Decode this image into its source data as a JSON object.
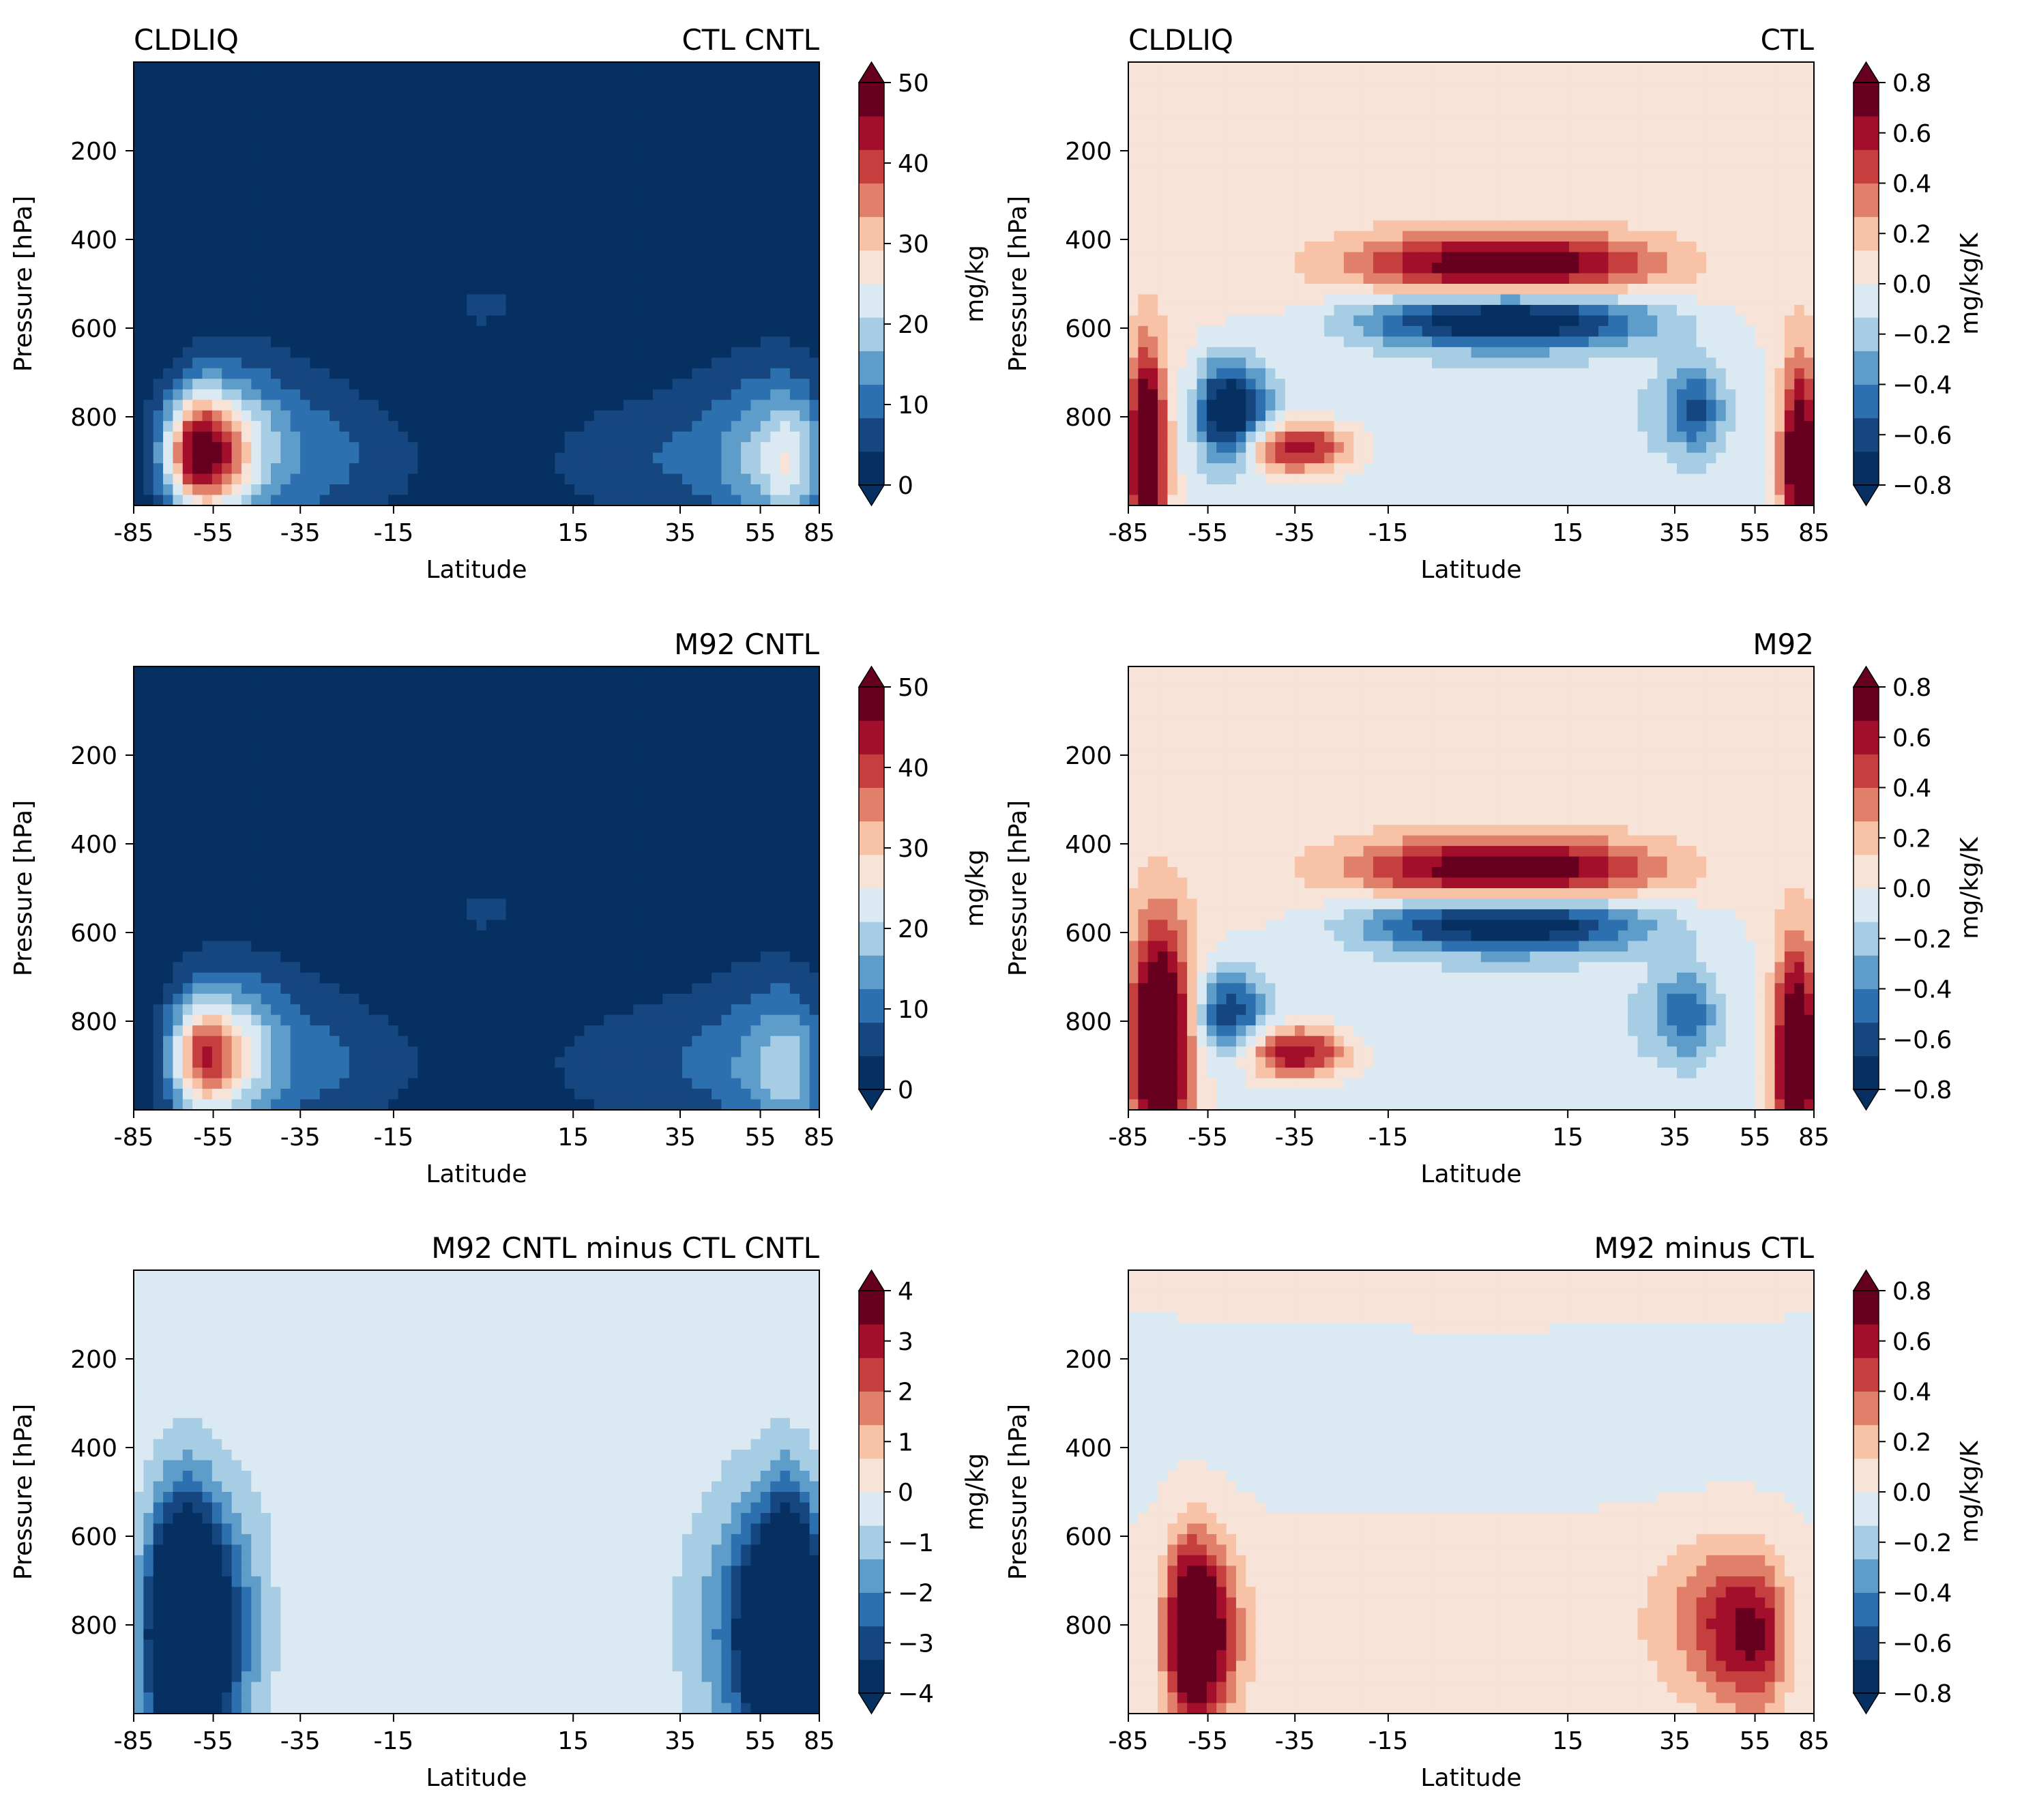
{
  "chart_data": [
    {
      "type": "heatmap",
      "title_left": "CLDLIQ",
      "title_right": "CTL CNTL",
      "xlabel": "Latitude",
      "ylabel": "Pressure [hPa]",
      "xticks": [
        "-85",
        "-55",
        "-35",
        "-15",
        "15",
        "35",
        "55",
        "85"
      ],
      "yticks": [
        "200",
        "400",
        "600",
        "800"
      ],
      "ylim": [
        1000,
        0
      ],
      "colorbar": {
        "label": "mg/kg",
        "levels": [
          0,
          50
        ],
        "ticks": [
          "0",
          "10",
          "20",
          "30",
          "40",
          "50"
        ]
      },
      "features": [
        {
          "lat": -60,
          "p": 880,
          "sx": 9,
          "sy": 90,
          "v": 42
        },
        {
          "lat": -50,
          "p": 870,
          "sx": 16,
          "sy": 160,
          "v": 14
        },
        {
          "lat": 68,
          "p": 900,
          "sx": 14,
          "sy": 110,
          "v": 18
        },
        {
          "lat": 60,
          "p": 860,
          "sx": 22,
          "sy": 180,
          "v": 8
        },
        {
          "lat": -22,
          "p": 900,
          "sx": 12,
          "sy": 110,
          "v": 5
        },
        {
          "lat": 25,
          "p": 900,
          "sx": 14,
          "sy": 100,
          "v": 5
        },
        {
          "lat": 0,
          "p": 550,
          "sx": 4,
          "sy": 40,
          "v": 6
        }
      ]
    },
    {
      "type": "heatmap",
      "title_left": "CLDLIQ",
      "title_right": "CTL",
      "xlabel": "Latitude",
      "ylabel": "Pressure [hPa]",
      "xticks": [
        "-85",
        "-55",
        "-35",
        "-15",
        "15",
        "35",
        "55",
        "85"
      ],
      "yticks": [
        "200",
        "400",
        "600",
        "800"
      ],
      "ylim": [
        1000,
        0
      ],
      "colorbar": {
        "label": "mg/kg/K",
        "levels": [
          -0.8,
          0.8
        ],
        "ticks": [
          "0.8",
          "0.6",
          "0.4",
          "0.2",
          "0.0",
          "−0.2",
          "−0.4",
          "−0.6",
          "−0.8"
        ]
      },
      "features": [
        {
          "lat": -78,
          "p": 880,
          "sx": 5,
          "sy": 160,
          "v": 1.1
        },
        {
          "lat": 78,
          "p": 900,
          "sx": 7,
          "sy": 160,
          "v": 1.0
        },
        {
          "lat": 5,
          "p": 460,
          "sx": 18,
          "sy": 50,
          "v": 0.8
        },
        {
          "lat": 5,
          "p": 580,
          "sx": 18,
          "sy": 45,
          "v": -0.9
        },
        {
          "lat": -50,
          "p": 790,
          "sx": 6,
          "sy": 80,
          "v": -0.9
        },
        {
          "lat": -35,
          "p": 870,
          "sx": 9,
          "sy": 40,
          "v": 0.7
        },
        {
          "lat": 40,
          "p": 780,
          "sx": 5,
          "sy": 70,
          "v": -0.5
        },
        {
          "lat": 5,
          "p": 750,
          "sx": 40,
          "sy": 200,
          "v": -0.15
        },
        {
          "lat": 0,
          "p": 500,
          "sx": 65,
          "sy": 160,
          "v": 0.12
        }
      ]
    },
    {
      "type": "heatmap",
      "title_left": "",
      "title_right": "M92 CNTL",
      "xlabel": "Latitude",
      "ylabel": "Pressure [hPa]",
      "xticks": [
        "-85",
        "-55",
        "-35",
        "-15",
        "15",
        "35",
        "55",
        "85"
      ],
      "yticks": [
        "200",
        "400",
        "600",
        "800"
      ],
      "ylim": [
        1000,
        0
      ],
      "colorbar": {
        "label": "mg/kg",
        "levels": [
          0,
          50
        ],
        "ticks": [
          "0",
          "10",
          "20",
          "30",
          "40",
          "50"
        ]
      },
      "features": [
        {
          "lat": -58,
          "p": 880,
          "sx": 9,
          "sy": 90,
          "v": 32
        },
        {
          "lat": -50,
          "p": 870,
          "sx": 16,
          "sy": 160,
          "v": 12
        },
        {
          "lat": 68,
          "p": 910,
          "sx": 14,
          "sy": 110,
          "v": 14
        },
        {
          "lat": 60,
          "p": 860,
          "sx": 22,
          "sy": 180,
          "v": 7
        },
        {
          "lat": -22,
          "p": 900,
          "sx": 12,
          "sy": 110,
          "v": 5
        },
        {
          "lat": 25,
          "p": 900,
          "sx": 14,
          "sy": 100,
          "v": 5
        },
        {
          "lat": 0,
          "p": 550,
          "sx": 4,
          "sy": 40,
          "v": 6
        }
      ]
    },
    {
      "type": "heatmap",
      "title_left": "",
      "title_right": "M92",
      "xlabel": "Latitude",
      "ylabel": "Pressure [hPa]",
      "xticks": [
        "-85",
        "-55",
        "-35",
        "-15",
        "15",
        "35",
        "55",
        "85"
      ],
      "yticks": [
        "200",
        "400",
        "600",
        "800"
      ],
      "ylim": [
        1000,
        0
      ],
      "colorbar": {
        "label": "mg/kg/K",
        "levels": [
          -0.8,
          0.8
        ],
        "ticks": [
          "0.8",
          "0.6",
          "0.4",
          "0.2",
          "0.0",
          "−0.2",
          "−0.4",
          "−0.6",
          "−0.8"
        ]
      },
      "features": [
        {
          "lat": -73,
          "p": 850,
          "sx": 8,
          "sy": 180,
          "v": 1.2
        },
        {
          "lat": 76,
          "p": 880,
          "sx": 8,
          "sy": 170,
          "v": 1.1
        },
        {
          "lat": 5,
          "p": 460,
          "sx": 18,
          "sy": 50,
          "v": 0.8
        },
        {
          "lat": 5,
          "p": 580,
          "sx": 18,
          "sy": 45,
          "v": -0.85
        },
        {
          "lat": -50,
          "p": 780,
          "sx": 6,
          "sy": 70,
          "v": -0.6
        },
        {
          "lat": -35,
          "p": 870,
          "sx": 8,
          "sy": 40,
          "v": 0.75
        },
        {
          "lat": 38,
          "p": 780,
          "sx": 5,
          "sy": 70,
          "v": -0.45
        },
        {
          "lat": 5,
          "p": 750,
          "sx": 40,
          "sy": 200,
          "v": -0.15
        },
        {
          "lat": 0,
          "p": 500,
          "sx": 65,
          "sy": 160,
          "v": 0.12
        }
      ]
    },
    {
      "type": "heatmap",
      "title_left": "",
      "title_right": "M92 CNTL minus CTL CNTL",
      "xlabel": "Latitude",
      "ylabel": "Pressure [hPa]",
      "xticks": [
        "-85",
        "-55",
        "-35",
        "-15",
        "15",
        "35",
        "55",
        "85"
      ],
      "yticks": [
        "200",
        "400",
        "600",
        "800"
      ],
      "ylim": [
        1000,
        0
      ],
      "colorbar": {
        "label": "mg/kg",
        "levels": [
          -4,
          4
        ],
        "ticks": [
          "4",
          "3",
          "2",
          "1",
          "0",
          "−1",
          "−2",
          "−3",
          "−4"
        ]
      },
      "features": [
        {
          "lat": -65,
          "p": 820,
          "sx": 10,
          "sy": 200,
          "v": -9
        },
        {
          "lat": 68,
          "p": 820,
          "sx": 13,
          "sy": 200,
          "v": -9
        },
        {
          "lat": 0,
          "p": 700,
          "sx": 55,
          "sy": 450,
          "v": -0.5
        },
        {
          "lat": -25,
          "p": 800,
          "sx": 12,
          "sy": 120,
          "v": 0.35
        }
      ]
    },
    {
      "type": "heatmap",
      "title_left": "",
      "title_right": "M92 minus CTL",
      "xlabel": "Latitude",
      "ylabel": "Pressure [hPa]",
      "xticks": [
        "-85",
        "-55",
        "-35",
        "-15",
        "15",
        "35",
        "55",
        "85"
      ],
      "yticks": [
        "200",
        "400",
        "600",
        "800"
      ],
      "ylim": [
        1000,
        0
      ],
      "colorbar": {
        "label": "mg/kg/K",
        "levels": [
          -0.8,
          0.8
        ],
        "ticks": [
          "0.8",
          "0.6",
          "0.4",
          "0.2",
          "0.0",
          "−0.2",
          "−0.4",
          "−0.6",
          "−0.8"
        ]
      },
      "features": [
        {
          "lat": -60,
          "p": 820,
          "sx": 7,
          "sy": 140,
          "v": 1.3
        },
        {
          "lat": 58,
          "p": 830,
          "sx": 10,
          "sy": 120,
          "v": 0.55
        },
        {
          "lat": 45,
          "p": 780,
          "sx": 10,
          "sy": 120,
          "v": 0.3
        },
        {
          "lat": 0,
          "p": 700,
          "sx": 60,
          "sy": 380,
          "v": 0.06
        },
        {
          "lat": 0,
          "p": 400,
          "sx": 70,
          "sy": 160,
          "v": -0.08
        }
      ]
    }
  ]
}
